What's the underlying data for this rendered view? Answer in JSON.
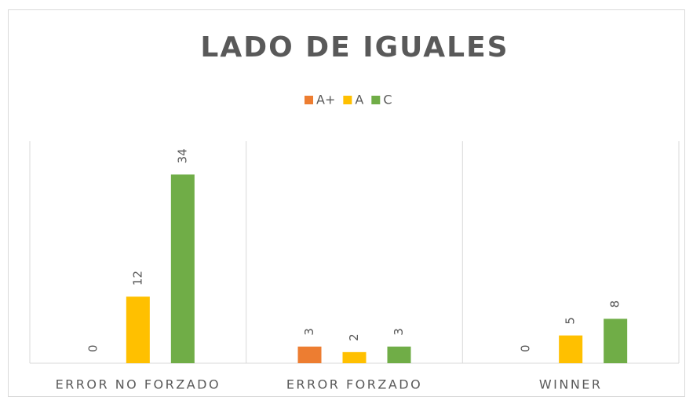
{
  "chart_data": {
    "type": "bar",
    "title": "LADO DE IGUALES",
    "categories": [
      "ERROR NO FORZADO",
      "ERROR FORZADO",
      "WINNER"
    ],
    "series": [
      {
        "name": "A+",
        "color": "#ED7D31",
        "values": [
          0,
          3,
          0
        ]
      },
      {
        "name": "A",
        "color": "#FFC000",
        "values": [
          12,
          2,
          5
        ]
      },
      {
        "name": "C",
        "color": "#70AD47",
        "values": [
          34,
          3,
          8
        ]
      }
    ],
    "ylim": [
      0,
      40
    ],
    "legend": "top"
  }
}
